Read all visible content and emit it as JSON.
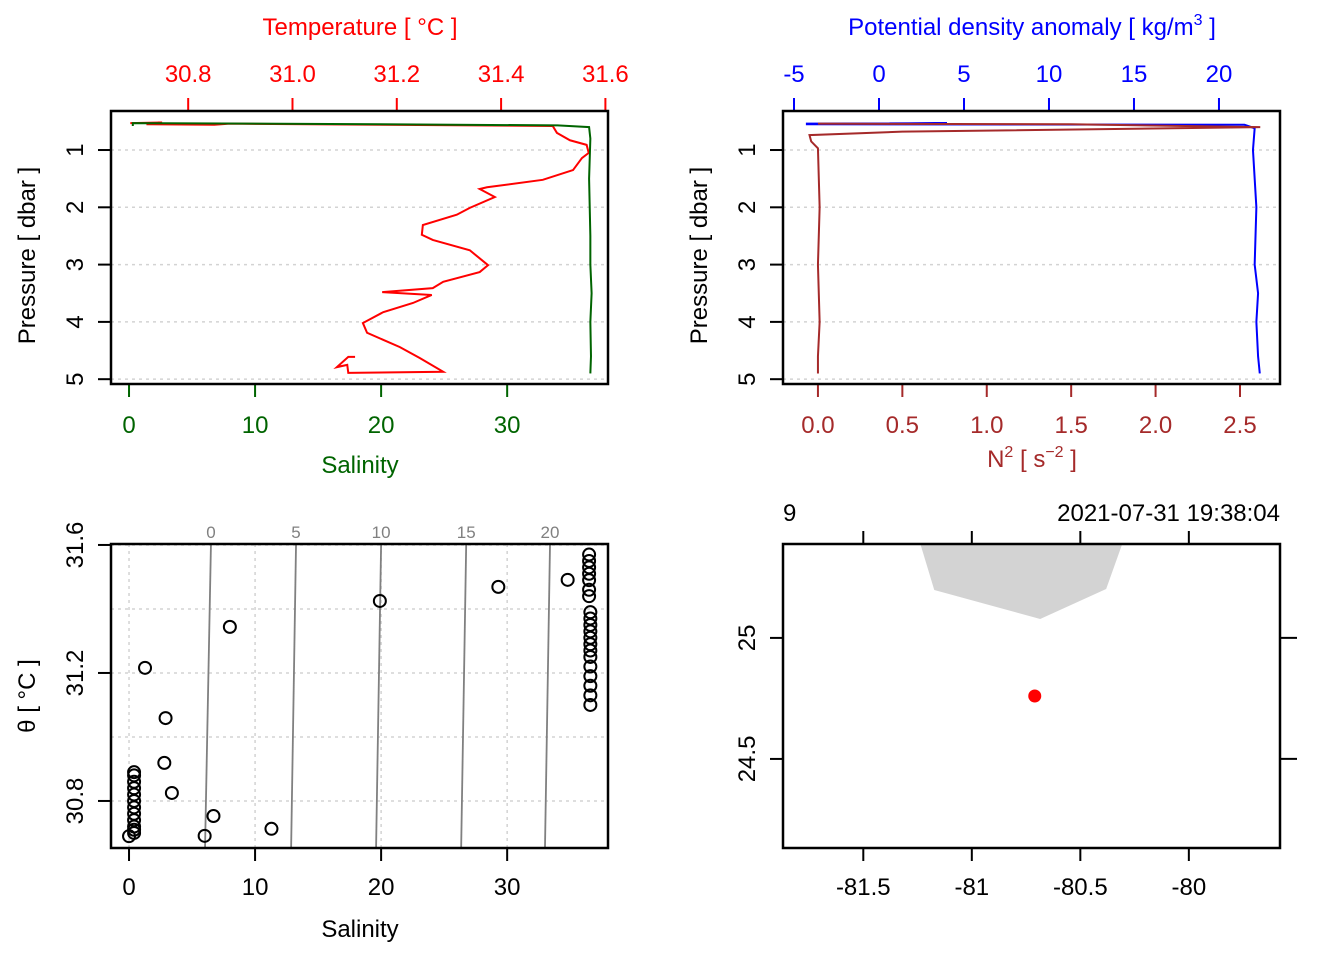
{
  "chart_data": [
    {
      "type": "line",
      "panel": "profile-TS",
      "title": "Temperature [ °C ]",
      "xlabel": "Salinity",
      "ylabel": "Pressure [ dbar ]",
      "colors": {
        "temperature": "#FF0000",
        "salinity": "#006400",
        "grid": "#D3D3D3"
      },
      "top_axis": {
        "label": "Temperature [ °C ]",
        "range": [
          30.652,
          31.605
        ],
        "ticks": [
          30.8,
          31.0,
          31.2,
          31.4,
          31.6
        ],
        "tick_labels": [
          "30.8",
          "31.0",
          "31.2",
          "31.4",
          "31.6"
        ]
      },
      "bottom_axis": {
        "label": "Salinity",
        "range": [
          -1.43,
          38.0
        ],
        "ticks": [
          0,
          10,
          20,
          30
        ],
        "tick_labels": [
          "0",
          "10",
          "20",
          "30"
        ]
      },
      "y_axis": {
        "label": "Pressure [ dbar ]",
        "range": [
          5.084,
          0.319
        ],
        "ticks": [
          1,
          2,
          3,
          4,
          5
        ],
        "tick_labels": [
          "1",
          "2",
          "3",
          "4",
          "5"
        ]
      },
      "series": [
        {
          "name": "Temperature",
          "axis": "top",
          "x": [
            30.689,
            30.75,
            30.72,
            30.85,
            30.88,
            31.499,
            31.507,
            31.532,
            31.564,
            31.568,
            31.555,
            31.538,
            31.48,
            31.373,
            31.359,
            31.388,
            31.34,
            31.315,
            31.25,
            31.248,
            31.269,
            31.34,
            31.375,
            31.359,
            31.289,
            31.269,
            31.172,
            31.267,
            31.231,
            31.174,
            31.135,
            31.143,
            31.206,
            31.244,
            31.289,
            31.107,
            31.105,
            31.085,
            31.107,
            31.12
          ],
          "y": [
            0.53,
            0.52,
            0.55,
            0.56,
            0.54,
            0.58,
            0.7,
            0.83,
            0.91,
            1.05,
            1.14,
            1.35,
            1.52,
            1.65,
            1.68,
            1.82,
            2.01,
            2.13,
            2.31,
            2.48,
            2.57,
            2.75,
            3.01,
            3.13,
            3.3,
            3.41,
            3.48,
            3.53,
            3.67,
            3.83,
            4.02,
            4.19,
            4.44,
            4.63,
            4.87,
            4.89,
            4.75,
            4.79,
            4.61,
            4.61
          ]
        },
        {
          "name": "Salinity",
          "axis": "bottom",
          "x": [
            0.3,
            0.3,
            20.0,
            34.0,
            36.5,
            36.6,
            36.5,
            36.6,
            36.6,
            36.7,
            36.6,
            36.65,
            36.6
          ],
          "y": [
            0.58,
            0.53,
            0.55,
            0.57,
            0.6,
            0.8,
            1.5,
            2.5,
            3.0,
            3.5,
            4.0,
            4.6,
            4.9
          ]
        }
      ]
    },
    {
      "type": "line",
      "panel": "profile-density-N2",
      "title": "Potential density anomaly [ kg/m3 ]",
      "xlabel": "N2 [ s-2 ]",
      "ylabel": "Pressure [ dbar ]",
      "colors": {
        "density": "#0000FF",
        "n2": "#A52A2A",
        "grid": "#D3D3D3"
      },
      "top_axis": {
        "label_main": "Potential density anomaly [ kg/m",
        "label_sup": "3",
        "label_end": " ]",
        "range": [
          -5.647,
          23.59
        ],
        "ticks": [
          -5,
          0,
          5,
          10,
          15,
          20
        ],
        "tick_labels": [
          "-5",
          "0",
          "5",
          "10",
          "15",
          "20"
        ]
      },
      "bottom_axis": {
        "label_main": "N",
        "label_sup": "2",
        "label_mid": " [ s",
        "label_sup2": "−2",
        "label_end": " ]",
        "range": [
          -0.207,
          2.737
        ],
        "ticks": [
          0,
          0.5,
          1,
          1.5,
          2,
          2.5
        ],
        "tick_labels": [
          "0.0",
          "0.5",
          "1.0",
          "1.5",
          "2.0",
          "2.5"
        ]
      },
      "y_axis": {
        "label": "Pressure [ dbar ]",
        "range": [
          5.084,
          0.319
        ],
        "ticks": [
          1,
          2,
          3,
          4,
          5
        ],
        "tick_labels": [
          "1",
          "2",
          "3",
          "4",
          "5"
        ]
      },
      "series": [
        {
          "name": "Potential density anomaly",
          "axis": "top",
          "x": [
            -4.3,
            4.0,
            -4.3,
            21.5,
            22.1,
            22.0,
            22.2,
            22.1,
            22.3,
            22.2,
            22.3,
            22.4
          ],
          "y": [
            0.54,
            0.53,
            0.55,
            0.56,
            0.62,
            1.0,
            2.0,
            3.0,
            3.5,
            4.0,
            4.6,
            4.9
          ]
        },
        {
          "name": "N2",
          "axis": "bottom",
          "x": [
            0.0,
            1.5,
            2.62,
            0.5,
            -0.05,
            -0.04,
            0.0,
            0.01,
            0.0,
            0.01,
            0.0,
            0.0
          ],
          "y": [
            0.54,
            0.55,
            0.6,
            0.68,
            0.74,
            0.85,
            0.97,
            2.0,
            3.0,
            4.0,
            4.6,
            4.9
          ]
        }
      ]
    },
    {
      "type": "scatter",
      "panel": "TS-diagram",
      "xlabel": "Salinity",
      "ylabel": "θ [ °C ]",
      "colors": {
        "points": "#000000",
        "isopycnal": "#808080",
        "grid": "#D3D3D3"
      },
      "x_axis": {
        "range": [
          -1.43,
          38.0
        ],
        "ticks": [
          0,
          10,
          20,
          30
        ],
        "tick_labels": [
          "0",
          "10",
          "20",
          "30"
        ]
      },
      "y_axis": {
        "range": [
          30.653,
          31.603
        ],
        "ticks": [
          30.8,
          31.2,
          31.6
        ],
        "tick_labels": [
          "30.8",
          "31.2",
          "31.6"
        ],
        "grid": [
          30.8,
          31.0,
          31.2,
          31.4,
          31.6
        ]
      },
      "isopycnals": [
        {
          "label": "0",
          "s_top": 6.5,
          "s_bottom": 6.03
        },
        {
          "label": "5",
          "s_top": 13.25,
          "s_bottom": 12.86
        },
        {
          "label": "10",
          "s_top": 20.0,
          "s_bottom": 19.6
        },
        {
          "label": "15",
          "s_top": 26.75,
          "s_bottom": 26.35
        },
        {
          "label": "20",
          "s_top": 33.4,
          "s_bottom": 33.0
        }
      ],
      "points": {
        "salinity": [
          1.27,
          8.0,
          19.9,
          29.3,
          34.8,
          2.9,
          2.8,
          3.4,
          6.7,
          6.0,
          11.3,
          0.0,
          0.4,
          0.4,
          0.4,
          0.4,
          0.4,
          0.4,
          0.4,
          0.4,
          0.4,
          0.4,
          0.4,
          0.4,
          36.5,
          36.5,
          36.5,
          36.5,
          36.5,
          36.5,
          36.5,
          36.6,
          36.6,
          36.6,
          36.6,
          36.6,
          36.6,
          36.6,
          36.6,
          36.6,
          36.6,
          36.6,
          36.6,
          36.6
        ],
        "theta": [
          31.216,
          31.344,
          31.425,
          31.469,
          31.491,
          31.059,
          30.919,
          30.825,
          30.753,
          30.691,
          30.713,
          30.69,
          30.7,
          30.72,
          30.74,
          30.76,
          30.78,
          30.8,
          30.82,
          30.84,
          30.86,
          30.88,
          30.89,
          30.71,
          31.57,
          31.55,
          31.53,
          31.51,
          31.49,
          31.46,
          31.44,
          31.39,
          31.37,
          31.35,
          31.33,
          31.31,
          31.29,
          31.27,
          31.25,
          31.22,
          31.19,
          31.16,
          31.13,
          31.1
        ]
      }
    },
    {
      "type": "scatter",
      "panel": "station-map",
      "header_left": "9",
      "header_right": "2021-07-31 19:38:04",
      "colors": {
        "land": "#D3D3D3",
        "station": "#FF0000"
      },
      "x_axis": {
        "range": [
          -81.87,
          -79.58
        ],
        "ticks": [
          -81.5,
          -81,
          -80.5,
          -80
        ],
        "tick_labels": [
          "-81.5",
          "-81",
          "-80.5",
          "-80"
        ]
      },
      "y_axis": {
        "range": [
          24.132,
          25.388
        ],
        "ticks": [
          24.5,
          25
        ],
        "tick_labels": [
          "24.5",
          "25"
        ]
      },
      "land": {
        "lon": [
          -81.237,
          -81.173,
          -80.685,
          -80.381,
          -80.307
        ],
        "lat": [
          25.388,
          25.198,
          25.078,
          25.202,
          25.388
        ]
      },
      "station": {
        "lon": -80.71,
        "lat": 24.76
      }
    }
  ]
}
